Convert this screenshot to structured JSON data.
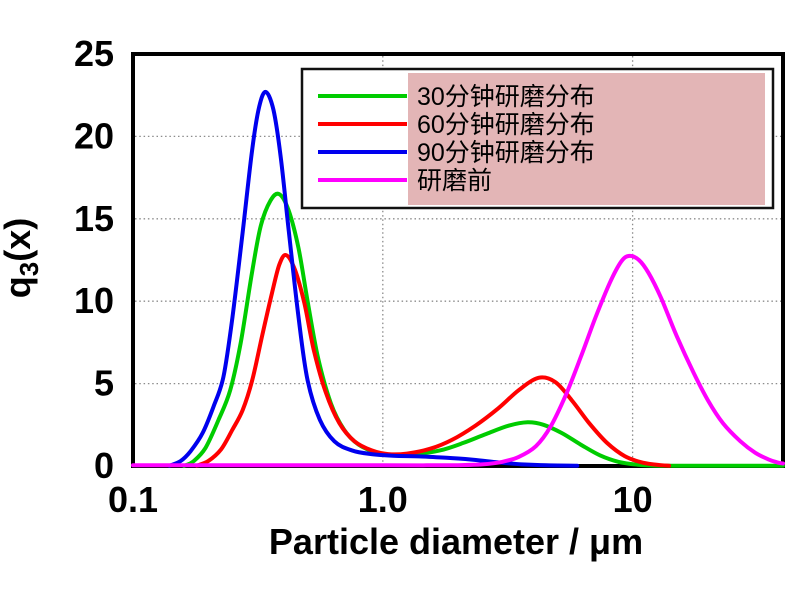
{
  "figure": {
    "background": "#ffffff",
    "axis_color": "#000000"
  },
  "chart_data": {
    "type": "line",
    "title": "",
    "xlabel": "Particle diameter / μm",
    "ylabel": {
      "base": "q",
      "sub": "3",
      "rest": "(x)"
    },
    "x_scale": "log",
    "xlim": [
      0.1,
      40
    ],
    "ylim": [
      0,
      25
    ],
    "x_ticks": [
      {
        "v": 0.1,
        "label": "0.1"
      },
      {
        "v": 1.0,
        "label": "1.0"
      },
      {
        "v": 10,
        "label": "10"
      }
    ],
    "y_ticks": [
      {
        "v": 0,
        "label": "0"
      },
      {
        "v": 5,
        "label": "5"
      },
      {
        "v": 10,
        "label": "10"
      },
      {
        "v": 15,
        "label": "15"
      },
      {
        "v": 20,
        "label": "20"
      },
      {
        "v": 25,
        "label": "25"
      }
    ],
    "grid": {
      "horizontal": [
        5,
        10,
        15,
        20
      ],
      "vertical": [
        1,
        10
      ],
      "color": "#8c8c8c",
      "style": "dotted"
    },
    "series": [
      {
        "name": "30分钟研磨分布",
        "color": "#00cc00",
        "peaks": [
          {
            "x": 0.38,
            "q3": 16.5
          },
          {
            "x": 3.8,
            "q3": 2.65
          }
        ],
        "points": [
          [
            0.16,
            0
          ],
          [
            0.175,
            0.3
          ],
          [
            0.195,
            1.1
          ],
          [
            0.22,
            2.8
          ],
          [
            0.245,
            4.6
          ],
          [
            0.27,
            7.5
          ],
          [
            0.3,
            11.8
          ],
          [
            0.325,
            14.6
          ],
          [
            0.355,
            16.1
          ],
          [
            0.385,
            16.5
          ],
          [
            0.42,
            15.5
          ],
          [
            0.46,
            13.2
          ],
          [
            0.5,
            10.0
          ],
          [
            0.55,
            6.6
          ],
          [
            0.62,
            3.8
          ],
          [
            0.7,
            2.2
          ],
          [
            0.8,
            1.3
          ],
          [
            0.95,
            0.8
          ],
          [
            1.1,
            0.68
          ],
          [
            1.35,
            0.72
          ],
          [
            1.7,
            0.95
          ],
          [
            2.1,
            1.4
          ],
          [
            2.6,
            1.95
          ],
          [
            3.2,
            2.45
          ],
          [
            3.8,
            2.65
          ],
          [
            4.4,
            2.5
          ],
          [
            5.2,
            2.0
          ],
          [
            6.2,
            1.3
          ],
          [
            7.4,
            0.65
          ],
          [
            8.8,
            0.25
          ],
          [
            10.5,
            0.08
          ],
          [
            13,
            0.02
          ],
          [
            20,
            0.02
          ],
          [
            30,
            0.02
          ],
          [
            40,
            0.02
          ]
        ]
      },
      {
        "name": "60分钟研磨分布",
        "color": "#ff0000",
        "peaks": [
          {
            "x": 0.41,
            "q3": 12.8
          },
          {
            "x": 4.2,
            "q3": 5.4
          }
        ],
        "points": [
          [
            0.18,
            0.02
          ],
          [
            0.2,
            0.3
          ],
          [
            0.225,
            1.0
          ],
          [
            0.25,
            2.2
          ],
          [
            0.275,
            3.4
          ],
          [
            0.3,
            5.2
          ],
          [
            0.33,
            8.0
          ],
          [
            0.36,
            10.5
          ],
          [
            0.385,
            12.2
          ],
          [
            0.41,
            12.8
          ],
          [
            0.445,
            11.9
          ],
          [
            0.485,
            9.9
          ],
          [
            0.53,
            7.0
          ],
          [
            0.59,
            4.5
          ],
          [
            0.67,
            2.6
          ],
          [
            0.77,
            1.5
          ],
          [
            0.9,
            0.95
          ],
          [
            1.05,
            0.72
          ],
          [
            1.25,
            0.75
          ],
          [
            1.55,
            1.05
          ],
          [
            1.9,
            1.6
          ],
          [
            2.35,
            2.45
          ],
          [
            2.9,
            3.5
          ],
          [
            3.5,
            4.6
          ],
          [
            4.2,
            5.35
          ],
          [
            4.9,
            5.1
          ],
          [
            5.7,
            4.0
          ],
          [
            6.7,
            2.6
          ],
          [
            7.9,
            1.4
          ],
          [
            9.3,
            0.6
          ],
          [
            11,
            0.2
          ],
          [
            13,
            0.05
          ],
          [
            14,
            0.02
          ]
        ]
      },
      {
        "name": "90分钟研磨分布",
        "color": "#0000ee",
        "peaks": [
          {
            "x": 0.34,
            "q3": 22.7
          }
        ],
        "points": [
          [
            0.14,
            0.02
          ],
          [
            0.155,
            0.3
          ],
          [
            0.17,
            0.9
          ],
          [
            0.19,
            2.0
          ],
          [
            0.21,
            3.6
          ],
          [
            0.23,
            5.4
          ],
          [
            0.25,
            9.0
          ],
          [
            0.275,
            14.2
          ],
          [
            0.3,
            19.2
          ],
          [
            0.32,
            21.8
          ],
          [
            0.34,
            22.7
          ],
          [
            0.365,
            21.6
          ],
          [
            0.39,
            18.8
          ],
          [
            0.42,
            14.3
          ],
          [
            0.46,
            9.0
          ],
          [
            0.5,
            5.2
          ],
          [
            0.56,
            2.8
          ],
          [
            0.64,
            1.5
          ],
          [
            0.75,
            0.95
          ],
          [
            0.9,
            0.72
          ],
          [
            1.1,
            0.62
          ],
          [
            1.4,
            0.58
          ],
          [
            1.8,
            0.5
          ],
          [
            2.3,
            0.38
          ],
          [
            2.9,
            0.22
          ],
          [
            3.6,
            0.1
          ],
          [
            4.5,
            0.04
          ],
          [
            6,
            0.02
          ]
        ]
      },
      {
        "name": "研磨前",
        "color": "#ff00ff",
        "peaks": [
          {
            "x": 9.7,
            "q3": 12.75
          }
        ],
        "points": [
          [
            0.1,
            0.04
          ],
          [
            0.5,
            0.04
          ],
          [
            1.0,
            0.04
          ],
          [
            1.5,
            0.04
          ],
          [
            2.0,
            0.05
          ],
          [
            2.5,
            0.1
          ],
          [
            3.0,
            0.25
          ],
          [
            3.5,
            0.55
          ],
          [
            4.1,
            1.2
          ],
          [
            4.7,
            2.4
          ],
          [
            5.4,
            4.3
          ],
          [
            6.2,
            6.6
          ],
          [
            7.1,
            9.0
          ],
          [
            8.1,
            11.1
          ],
          [
            9.0,
            12.4
          ],
          [
            9.7,
            12.75
          ],
          [
            10.6,
            12.5
          ],
          [
            11.6,
            11.7
          ],
          [
            13,
            10.2
          ],
          [
            15,
            7.9
          ],
          [
            17.5,
            5.7
          ],
          [
            20,
            4.0
          ],
          [
            23,
            2.6
          ],
          [
            27,
            1.5
          ],
          [
            31,
            0.8
          ],
          [
            35,
            0.4
          ],
          [
            38,
            0.22
          ],
          [
            40,
            0.15
          ]
        ]
      }
    ],
    "legend": {
      "position": "top-right",
      "background": "#ffffff",
      "border_color": "#111111",
      "highlight_color": "#e3b5b6",
      "text_color": "#000000"
    }
  }
}
